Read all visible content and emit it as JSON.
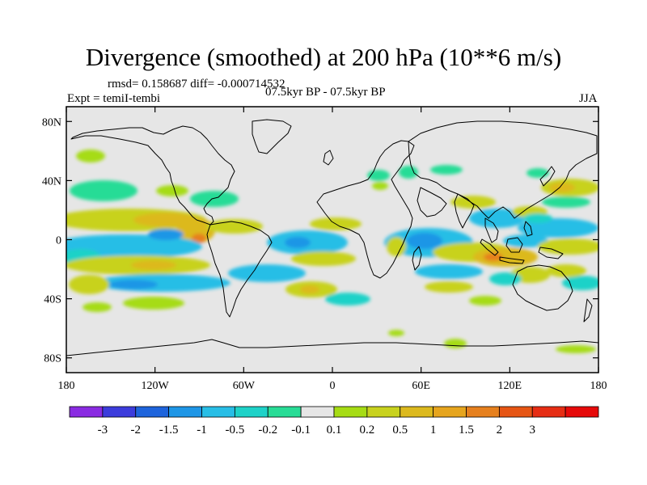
{
  "figure": {
    "title": "Divergence (smoothed) at 200 hPa (10**6 m/s)",
    "stats": "rmsd= 0.158687 diff= -0.000714532",
    "experiment": "Expt = temiI-tembi",
    "period": "07.5kyr BP - 07.5kyr BP",
    "season": "JJA"
  },
  "map_data": {
    "variable": "200 hPa smoothed divergence difference",
    "projection": "cylindrical equidistant",
    "lon_range": [
      -180,
      180
    ],
    "lat_range": [
      -90,
      90
    ],
    "lat_ticks": [
      {
        "value": 80,
        "label": "80N"
      },
      {
        "value": 40,
        "label": "40N"
      },
      {
        "value": 0,
        "label": "0"
      },
      {
        "value": -40,
        "label": "40S"
      },
      {
        "value": -80,
        "label": "80S"
      }
    ],
    "lon_ticks": [
      {
        "value": -180,
        "label": "180"
      },
      {
        "value": -120,
        "label": "120W"
      },
      {
        "value": -60,
        "label": "60W"
      },
      {
        "value": 0,
        "label": "0"
      },
      {
        "value": 60,
        "label": "60E"
      },
      {
        "value": 120,
        "label": "120E"
      },
      {
        "value": 180,
        "label": "180"
      }
    ],
    "background_color": "#e6e6e6",
    "features": [
      {
        "name": "tropical-pacific-warm-band",
        "lon": -125,
        "lat": 8,
        "value": 0.3
      },
      {
        "name": "central-america-max",
        "lon": -90,
        "lat": 3,
        "value": 1.0
      },
      {
        "name": "south-pacific-warm-band",
        "lon": -120,
        "lat": -25,
        "value": 0.3
      },
      {
        "name": "north-pacific-cool",
        "lon": -150,
        "lat": 30,
        "value": -0.2
      },
      {
        "name": "equatorial-pacific-cool",
        "lon": -140,
        "lat": -5,
        "value": -0.5
      },
      {
        "name": "southern-pacific-cool-band",
        "lon": -100,
        "lat": -35,
        "value": -0.3
      },
      {
        "name": "tropical-atlantic-cool",
        "lon": -30,
        "lat": 0,
        "value": -0.5
      },
      {
        "name": "south-atlantic-warm",
        "lon": -25,
        "lat": -15,
        "value": 0.3
      },
      {
        "name": "africa-indian-ocean-cool",
        "lon": 60,
        "lat": 0,
        "value": -0.7
      },
      {
        "name": "indian-ocean-warm",
        "lon": 90,
        "lat": -5,
        "value": 0.4
      },
      {
        "name": "maritime-continent-max",
        "lon": 110,
        "lat": -8,
        "value": 0.8
      },
      {
        "name": "western-pacific-warm",
        "lon": 150,
        "lat": 0,
        "value": 0.3
      },
      {
        "name": "north-pacific-east-asia-warm",
        "lon": 150,
        "lat": 35,
        "value": 0.3
      }
    ]
  },
  "colorbar": {
    "colors": [
      "#8a2be2",
      "#3c3cdc",
      "#1e64dc",
      "#1e96e6",
      "#28bee6",
      "#1ed2c8",
      "#28dc96",
      "#e6e6e6",
      "#a6dc14",
      "#c8d21e",
      "#dcb91e",
      "#e6a51e",
      "#e6801e",
      "#e65514",
      "#e62d14",
      "#e60a0a"
    ],
    "labels": [
      "-3",
      "-2",
      "-1.5",
      "-1",
      "-0.5",
      "-0.2",
      "-0.1",
      "0.1",
      "0.2",
      "0.5",
      "1",
      "1.5",
      "2",
      "3"
    ]
  }
}
